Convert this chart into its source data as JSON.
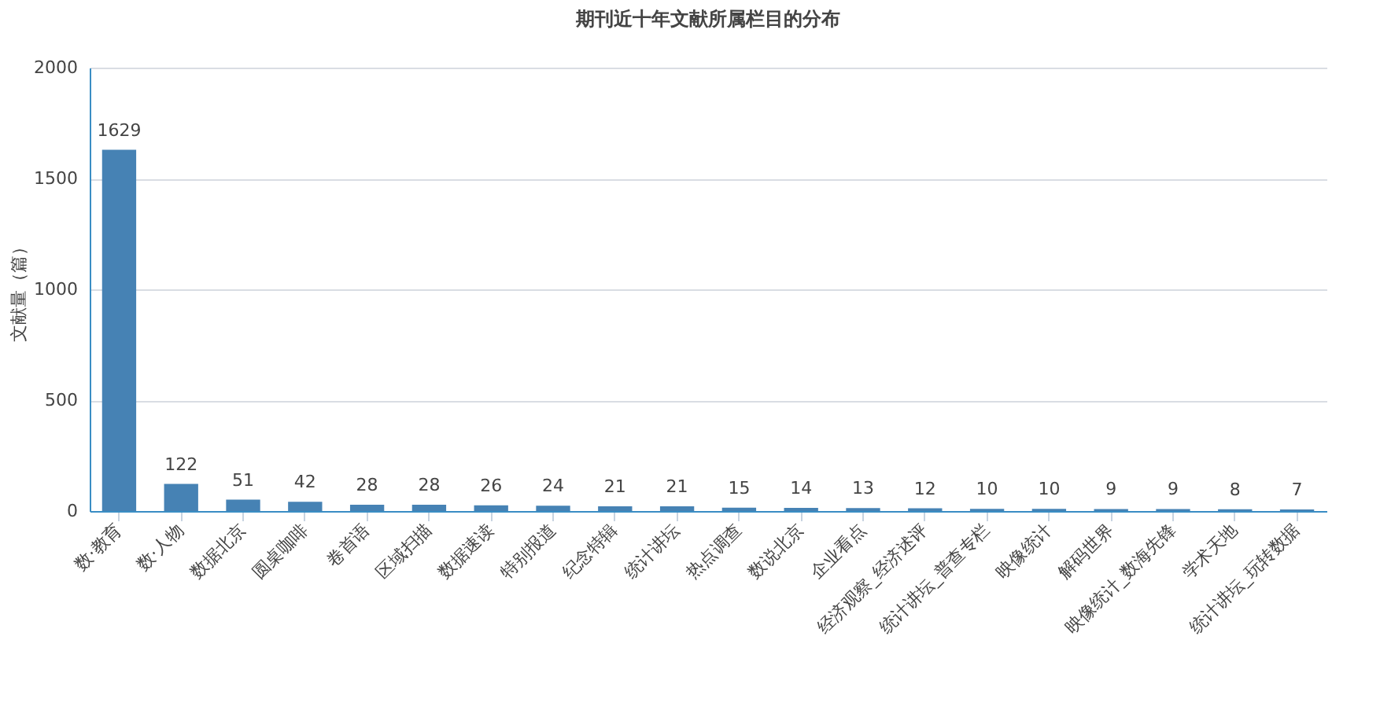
{
  "chart_data": {
    "type": "bar",
    "title": "期刊近十年文献所属栏目的分布",
    "ylabel": "文献量（篇）",
    "categories": [
      "数·教育",
      "数·人物",
      "数据北京",
      "圆桌咖啡",
      "卷首语",
      "区域扫描",
      "数据速读",
      "特别报道",
      "纪念特辑",
      "统计讲坛",
      "热点调查",
      "数说北京",
      "企业看点",
      "经济观察_经济述评",
      "统计讲坛_普查专栏",
      "映像统计",
      "解码世界",
      "映像统计_数海先锋",
      "学术天地",
      "统计讲坛_玩转数据"
    ],
    "values": [
      1629,
      122,
      51,
      42,
      28,
      28,
      26,
      24,
      21,
      21,
      15,
      14,
      13,
      12,
      10,
      10,
      9,
      9,
      8,
      7
    ],
    "color": "#4682b4",
    "ylim": [
      0,
      2000
    ],
    "yticks": [
      0,
      500,
      1000,
      1500,
      2000
    ],
    "grid": "y",
    "data_labels": true
  }
}
